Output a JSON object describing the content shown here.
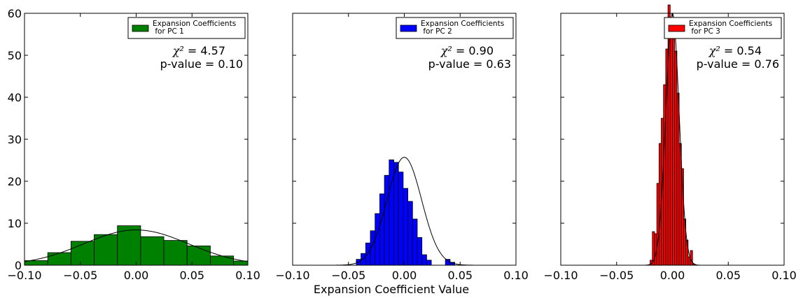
{
  "figure": {
    "xlabel": "Expansion Coefficient Value"
  },
  "chart_data": [
    {
      "type": "histogram",
      "legend": "Expansion Coefficients\n for PC 1",
      "legend_position": "top-right",
      "color": "#008000",
      "annotation": {
        "chi2_label": "χ²",
        "chi2_text": " = 4.57",
        "p_text": "p-value = 0.10"
      },
      "xlim": [
        -0.1,
        0.1
      ],
      "ylim": [
        0,
        60
      ],
      "xticks": [
        "-0.10",
        "-0.05",
        "0.00",
        "0.05",
        "0.10"
      ],
      "yticks": [
        "0",
        "10",
        "20",
        "30",
        "40",
        "50",
        "60"
      ],
      "bin_edges": [
        -0.1,
        -0.0792,
        -0.0584,
        -0.0376,
        -0.0168,
        0.004,
        0.0248,
        0.0456,
        0.0664,
        0.0872,
        0.1
      ],
      "counts": [
        1.1,
        3.0,
        5.7,
        7.3,
        9.4,
        6.8,
        5.9,
        4.6,
        2.2,
        1.0
      ],
      "fit": {
        "mean": 0.0,
        "std": 0.047,
        "peak": 8.4
      }
    },
    {
      "type": "histogram",
      "legend": "Expansion Coefficients\n for PC 2",
      "legend_position": "top-right",
      "color": "#0000ff",
      "annotation": {
        "chi2_label": "χ²",
        "chi2_text": " = 0.90",
        "p_text": "p-value = 0.63"
      },
      "xlim": [
        -0.1,
        0.1
      ],
      "ylim": [
        0,
        60
      ],
      "xticks": [
        "-0.10",
        "-0.05",
        "0.00",
        "0.05",
        "0.10"
      ],
      "yticks": [
        "0",
        "10",
        "20",
        "30",
        "40",
        "50",
        "60"
      ],
      "bin_edges": [
        -0.043,
        -0.0388,
        -0.0346,
        -0.0304,
        -0.0262,
        -0.022,
        -0.0178,
        -0.0136,
        -0.0094,
        -0.0052,
        -0.001,
        0.0032,
        0.0074,
        0.0116,
        0.0158,
        0.02,
        0.0242,
        0.0284,
        0.0326,
        0.0368,
        0.041,
        0.0452,
        0.0494,
        0.0536
      ],
      "counts": [
        1.4,
        2.8,
        5.3,
        8.2,
        12.3,
        17.0,
        21.4,
        25.1,
        24.5,
        22.2,
        18.3,
        15.2,
        11.0,
        6.6,
        2.5,
        1.2,
        0,
        0,
        0,
        1.4,
        0.7,
        0,
        0
      ],
      "fit": {
        "mean": 0.0,
        "std": 0.0155,
        "peak": 25.7
      }
    },
    {
      "type": "histogram",
      "legend": "Expansion Coefficients\n for PC 3",
      "legend_position": "top-right",
      "color": "#ff0000",
      "annotation": {
        "chi2_label": "χ²",
        "chi2_text": " = 0.54",
        "p_text": "p-value = 0.76"
      },
      "xlim": [
        -0.1,
        0.1
      ],
      "ylim": [
        0,
        60
      ],
      "xticks": [
        "-0.10",
        "-0.05",
        "0.00",
        "0.05",
        "0.10"
      ],
      "yticks": [
        "0",
        "10",
        "20",
        "30",
        "40",
        "50",
        "60"
      ],
      "bin_edges": [
        -0.02,
        -0.018,
        -0.016,
        -0.014,
        -0.012,
        -0.01,
        -0.008,
        -0.006,
        -0.004,
        -0.002,
        0.0,
        0.002,
        0.004,
        0.006,
        0.008,
        0.01,
        0.012,
        0.014,
        0.016,
        0.018,
        0.02
      ],
      "counts": [
        1.2,
        8.0,
        7.5,
        19.5,
        29.0,
        35.0,
        43.0,
        51.5,
        62.0,
        57.0,
        58.5,
        51.0,
        41.0,
        29.0,
        23.0,
        11.0,
        6.0,
        2.0,
        3.5,
        0.3
      ],
      "fit": {
        "mean": 0.0,
        "std": 0.006,
        "peak": 60.0
      }
    }
  ]
}
